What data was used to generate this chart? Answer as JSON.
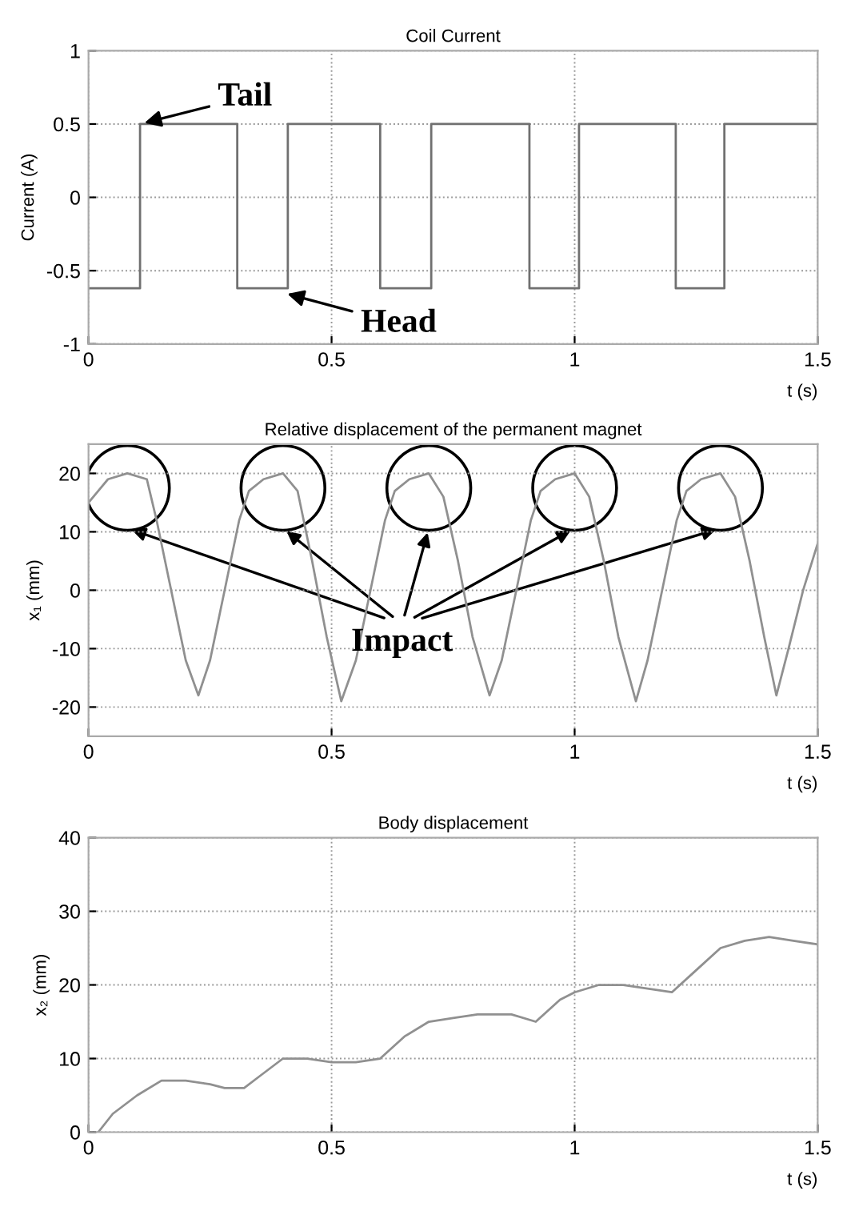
{
  "chart_data": [
    {
      "type": "step",
      "title": "Coil Current",
      "ylabel": "Current (A)",
      "xlabel": "t (s)",
      "color": "#707070",
      "line_style": "solid",
      "grid": true,
      "x": [
        0,
        0.106,
        0.306,
        0.41,
        0.6,
        0.705,
        0.907,
        1.009,
        1.208,
        1.308,
        1.5
      ],
      "values": [
        -0.62,
        0.5,
        -0.62,
        0.5,
        -0.62,
        0.5,
        -0.62,
        0.5,
        -0.62,
        0.5,
        0.5
      ],
      "xlim": [
        0,
        1.5
      ],
      "ylim": [
        -1,
        1
      ],
      "xticks": [
        0,
        0.5,
        1,
        1.5
      ],
      "yticks": [
        -1,
        -0.5,
        0,
        0.5,
        1
      ],
      "annotations": [
        {
          "text": "Tail",
          "x": 0.106,
          "y": 0.5
        },
        {
          "text": "Head",
          "x": 0.4,
          "y": -0.65
        }
      ]
    },
    {
      "type": "line",
      "title": "Relative displacement of the permanent magnet",
      "ylabel": "x₁ (mm)",
      "xlabel": "t (s)",
      "color": "#909090",
      "line_style": "solid",
      "grid": true,
      "x": [
        0,
        0.02,
        0.04,
        0.08,
        0.12,
        0.14,
        0.17,
        0.2,
        0.226,
        0.25,
        0.28,
        0.31,
        0.33,
        0.36,
        0.4,
        0.43,
        0.46,
        0.49,
        0.52,
        0.55,
        0.58,
        0.61,
        0.63,
        0.66,
        0.7,
        0.73,
        0.76,
        0.79,
        0.825,
        0.85,
        0.88,
        0.91,
        0.93,
        0.96,
        1.0,
        1.03,
        1.06,
        1.09,
        1.126,
        1.15,
        1.18,
        1.21,
        1.23,
        1.26,
        1.3,
        1.33,
        1.36,
        1.39,
        1.415,
        1.44,
        1.47,
        1.5
      ],
      "values": [
        15,
        17,
        19,
        20,
        19,
        12,
        0,
        -12,
        -18,
        -12,
        0,
        12,
        17,
        19,
        20,
        17,
        5,
        -8,
        -19,
        -12,
        0,
        12,
        17,
        19,
        20,
        16,
        5,
        -8,
        -18,
        -12,
        0,
        12,
        17,
        19,
        20,
        16,
        5,
        -8,
        -19,
        -12,
        0,
        12,
        17,
        19,
        20,
        16,
        5,
        -8,
        -18,
        -10,
        0,
        8
      ],
      "xlim": [
        0,
        1.5
      ],
      "ylim": [
        -25,
        25
      ],
      "xticks": [
        0,
        0.5,
        1,
        1.5
      ],
      "yticks": [
        -20,
        -10,
        0,
        10,
        20
      ],
      "annotations": [
        "Impact"
      ]
    },
    {
      "type": "line",
      "title": "Body displacement",
      "ylabel": "x₂ (mm)",
      "xlabel": "t (s)",
      "color": "#909090",
      "line_style": "solid",
      "grid": true,
      "x": [
        0.02,
        0.05,
        0.1,
        0.15,
        0.2,
        0.25,
        0.28,
        0.32,
        0.35,
        0.4,
        0.45,
        0.5,
        0.55,
        0.6,
        0.65,
        0.7,
        0.75,
        0.8,
        0.87,
        0.92,
        0.97,
        1.0,
        1.05,
        1.1,
        1.15,
        1.2,
        1.25,
        1.3,
        1.35,
        1.4,
        1.45,
        1.5
      ],
      "values": [
        0,
        2.5,
        5,
        7,
        7,
        6.5,
        6,
        6,
        7.5,
        10,
        10,
        9.5,
        9.5,
        10,
        13,
        15,
        15.5,
        16,
        16,
        15,
        18,
        19,
        20,
        20,
        19.5,
        19,
        22,
        25,
        26,
        26.5,
        26,
        25.5
      ],
      "xlim": [
        0,
        1.5
      ],
      "ylim": [
        0,
        40
      ],
      "xticks": [
        0,
        0.5,
        1,
        1.5
      ],
      "yticks": [
        0,
        10,
        20,
        30,
        40
      ]
    }
  ]
}
